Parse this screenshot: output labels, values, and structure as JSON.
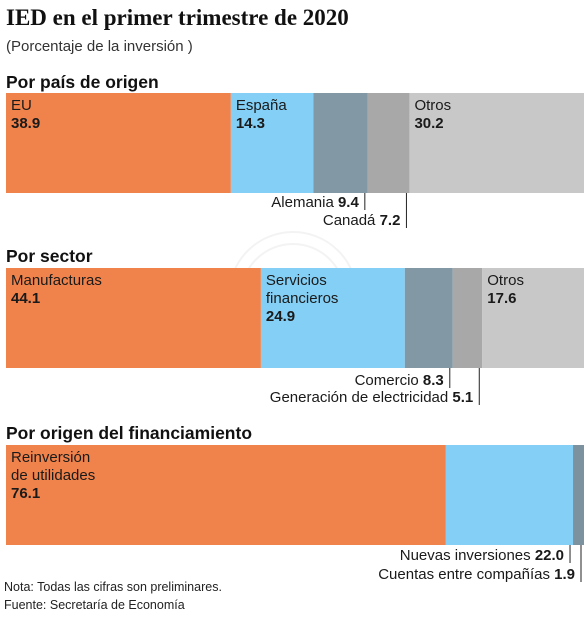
{
  "header": {
    "title": "IED en el primer trimestre de 2020",
    "subtitle": "(Porcentaje de la inversión )"
  },
  "colors": {
    "orange": "#F0834B",
    "lightblue": "#83CFF5",
    "slate": "#8299A5",
    "midgray": "#A8A8A8",
    "lightgray": "#C8C8C8",
    "accent_slate": "#7C929E"
  },
  "chart_data": [
    {
      "type": "bar",
      "orientation": "horizontal-stacked",
      "title": "Por país de origen",
      "categories": [
        "EU",
        "España",
        "Alemania",
        "Canadá",
        "Otros"
      ],
      "values": [
        38.9,
        14.3,
        9.4,
        7.2,
        30.2
      ],
      "colors": [
        "#F0834B",
        "#83CFF5",
        "#8299A5",
        "#A8A8A8",
        "#C8C8C8"
      ],
      "inside_labels": [
        [
          "EU"
        ],
        [
          "España"
        ],
        null,
        null,
        [
          "Otros"
        ]
      ]
    },
    {
      "type": "bar",
      "orientation": "horizontal-stacked",
      "title": "Por sector",
      "categories": [
        "Manufacturas",
        "Servicios financieros",
        "Comercio",
        "Generación de electricidad",
        "Otros"
      ],
      "values": [
        44.1,
        24.9,
        8.3,
        5.1,
        17.6
      ],
      "colors": [
        "#F0834B",
        "#83CFF5",
        "#8299A5",
        "#A8A8A8",
        "#C8C8C8"
      ],
      "inside_labels": [
        [
          "Manufacturas"
        ],
        [
          "Servicios",
          "financieros"
        ],
        null,
        null,
        [
          "Otros"
        ]
      ]
    },
    {
      "type": "bar",
      "orientation": "horizontal-stacked",
      "title": "Por origen del financiamiento",
      "categories": [
        "Reinversión de utilidades",
        "Nuevas inversiones",
        "Cuentas entre compañías"
      ],
      "values": [
        76.1,
        22.0,
        1.9
      ],
      "colors": [
        "#F0834B",
        "#83CFF5",
        "#7C929E"
      ],
      "inside_labels": [
        [
          "Reinversión",
          "de utilidades"
        ],
        null,
        null
      ]
    }
  ],
  "value_labels": [
    [
      "38.9",
      "14.3",
      "9.4",
      "7.2",
      "30.2"
    ],
    [
      "44.1",
      "24.9",
      "8.3",
      "5.1",
      "17.6"
    ],
    [
      "76.1",
      "22.0",
      "1.9"
    ]
  ],
  "footer": {
    "note": "Nota: Todas las cifras son preliminares.",
    "source": "Fuente: Secretaría de Economía"
  }
}
